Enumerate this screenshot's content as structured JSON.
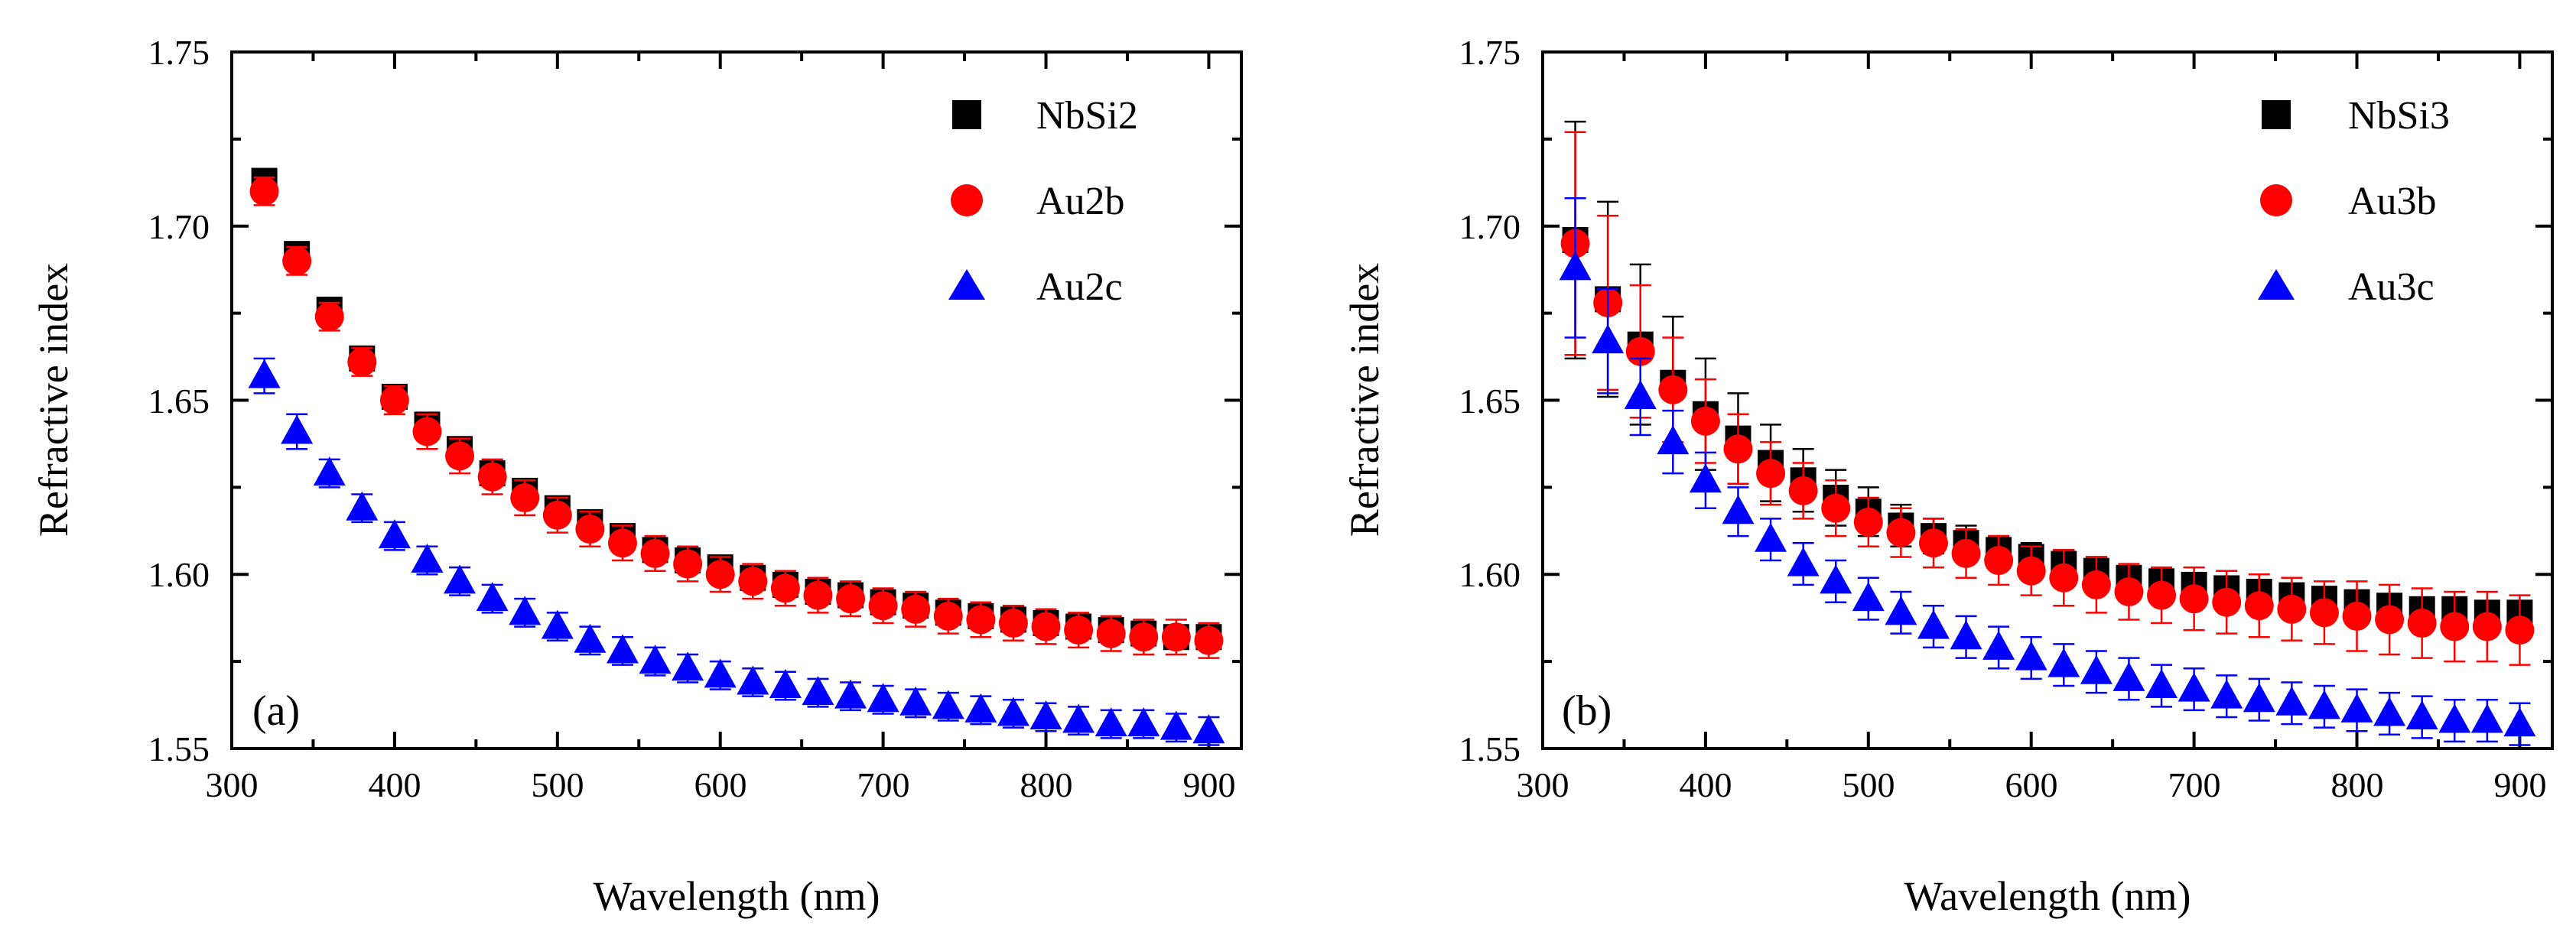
{
  "chart_data": [
    {
      "type": "scatter",
      "panel_label": "(a)",
      "xlabel": "Wavelength (nm)",
      "ylabel": "Refractive index",
      "xlim": [
        300,
        920
      ],
      "ylim": [
        1.55,
        1.75
      ],
      "xticks": [
        300,
        400,
        500,
        600,
        700,
        800,
        900
      ],
      "xtick_labels": [
        "300",
        "400",
        "500",
        "600",
        "700",
        "800",
        "900"
      ],
      "yticks": [
        1.55,
        1.6,
        1.65,
        1.7,
        1.75
      ],
      "ytick_labels": [
        "1.55",
        "1.60",
        "1.65",
        "1.70",
        "1.75"
      ],
      "legend_position": "top-right",
      "x": [
        320,
        340,
        360,
        380,
        400,
        420,
        440,
        460,
        480,
        500,
        520,
        540,
        560,
        580,
        600,
        620,
        640,
        660,
        680,
        700,
        720,
        740,
        760,
        780,
        800,
        820,
        840,
        860,
        880,
        900
      ],
      "series": [
        {
          "name": "NbSi2",
          "marker": "square",
          "color": "#000000",
          "values": [
            1.713,
            1.692,
            1.676,
            1.662,
            1.651,
            1.643,
            1.636,
            1.629,
            1.624,
            1.619,
            1.615,
            1.611,
            1.607,
            1.604,
            1.602,
            1.599,
            1.597,
            1.595,
            1.594,
            1.592,
            1.591,
            1.589,
            1.588,
            1.587,
            1.586,
            1.585,
            1.584,
            1.583,
            1.582,
            1.582
          ],
          "errors": [
            0.003,
            0.003,
            0.003,
            0.003,
            0.003,
            0.003,
            0.003,
            0.003,
            0.003,
            0.003,
            0.003,
            0.003,
            0.003,
            0.003,
            0.003,
            0.003,
            0.003,
            0.003,
            0.003,
            0.003,
            0.003,
            0.003,
            0.003,
            0.003,
            0.003,
            0.003,
            0.003,
            0.003,
            0.003,
            0.003
          ]
        },
        {
          "name": "Au2b",
          "marker": "circle",
          "color": "#ff0000",
          "values": [
            1.71,
            1.69,
            1.674,
            1.661,
            1.65,
            1.641,
            1.634,
            1.628,
            1.622,
            1.617,
            1.613,
            1.609,
            1.606,
            1.603,
            1.6,
            1.598,
            1.596,
            1.594,
            1.593,
            1.591,
            1.59,
            1.588,
            1.587,
            1.586,
            1.585,
            1.584,
            1.583,
            1.582,
            1.582,
            1.581
          ],
          "errors": [
            0.004,
            0.004,
            0.004,
            0.004,
            0.004,
            0.005,
            0.005,
            0.005,
            0.005,
            0.005,
            0.005,
            0.005,
            0.005,
            0.005,
            0.005,
            0.005,
            0.005,
            0.005,
            0.005,
            0.005,
            0.005,
            0.005,
            0.005,
            0.005,
            0.005,
            0.005,
            0.005,
            0.005,
            0.005,
            0.005
          ]
        },
        {
          "name": "Au2c",
          "marker": "triangle",
          "color": "#0000ff",
          "values": [
            1.657,
            1.641,
            1.629,
            1.619,
            1.611,
            1.604,
            1.598,
            1.593,
            1.589,
            1.585,
            1.581,
            1.578,
            1.575,
            1.573,
            1.571,
            1.569,
            1.568,
            1.566,
            1.565,
            1.564,
            1.563,
            1.562,
            1.561,
            1.56,
            1.559,
            1.558,
            1.557,
            1.557,
            1.556,
            1.555
          ],
          "errors": [
            0.005,
            0.005,
            0.004,
            0.004,
            0.004,
            0.004,
            0.004,
            0.004,
            0.004,
            0.004,
            0.004,
            0.004,
            0.004,
            0.004,
            0.004,
            0.004,
            0.004,
            0.004,
            0.004,
            0.004,
            0.004,
            0.004,
            0.004,
            0.004,
            0.004,
            0.004,
            0.004,
            0.004,
            0.004,
            0.004
          ]
        }
      ]
    },
    {
      "type": "scatter",
      "panel_label": "(b)",
      "xlabel": "Wavelength (nm)",
      "ylabel": "Refractive index",
      "xlim": [
        300,
        920
      ],
      "ylim": [
        1.55,
        1.75
      ],
      "xticks": [
        300,
        400,
        500,
        600,
        700,
        800,
        900
      ],
      "xtick_labels": [
        "300",
        "400",
        "500",
        "600",
        "700",
        "800",
        "900"
      ],
      "yticks": [
        1.55,
        1.6,
        1.65,
        1.7,
        1.75
      ],
      "ytick_labels": [
        "1.55",
        "1.60",
        "1.65",
        "1.70",
        "1.75"
      ],
      "legend_position": "top-right",
      "x": [
        320,
        340,
        360,
        380,
        400,
        420,
        440,
        460,
        480,
        500,
        520,
        540,
        560,
        580,
        600,
        620,
        640,
        660,
        680,
        700,
        720,
        740,
        760,
        780,
        800,
        820,
        840,
        860,
        880,
        900
      ],
      "series": [
        {
          "name": "NbSi3",
          "marker": "square",
          "color": "#000000",
          "values": [
            1.696,
            1.679,
            1.666,
            1.655,
            1.646,
            1.639,
            1.632,
            1.627,
            1.622,
            1.618,
            1.614,
            1.611,
            1.609,
            1.607,
            1.605,
            1.603,
            1.601,
            1.599,
            1.598,
            1.597,
            1.596,
            1.595,
            1.594,
            1.593,
            1.592,
            1.591,
            1.59,
            1.59,
            1.589,
            1.589
          ],
          "errors": [
            0.034,
            0.028,
            0.023,
            0.019,
            0.016,
            0.013,
            0.011,
            0.009,
            0.008,
            0.007,
            0.006,
            0.005,
            0.005,
            0.004,
            0.004,
            0.004,
            0.004,
            0.003,
            0.003,
            0.003,
            0.003,
            0.003,
            0.003,
            0.003,
            0.003,
            0.003,
            0.003,
            0.003,
            0.003,
            0.003
          ]
        },
        {
          "name": "Au3b",
          "marker": "circle",
          "color": "#ff0000",
          "values": [
            1.695,
            1.678,
            1.664,
            1.653,
            1.644,
            1.636,
            1.629,
            1.624,
            1.619,
            1.615,
            1.612,
            1.609,
            1.606,
            1.604,
            1.601,
            1.599,
            1.597,
            1.595,
            1.594,
            1.593,
            1.592,
            1.591,
            1.59,
            1.589,
            1.588,
            1.587,
            1.586,
            1.585,
            1.585,
            1.584
          ],
          "errors": [
            0.032,
            0.025,
            0.019,
            0.015,
            0.012,
            0.01,
            0.009,
            0.008,
            0.008,
            0.007,
            0.007,
            0.007,
            0.007,
            0.007,
            0.007,
            0.008,
            0.008,
            0.008,
            0.008,
            0.009,
            0.009,
            0.009,
            0.009,
            0.009,
            0.01,
            0.01,
            0.01,
            0.01,
            0.01,
            0.01
          ]
        },
        {
          "name": "Au3c",
          "marker": "triangle",
          "color": "#0000ff",
          "values": [
            1.688,
            1.667,
            1.651,
            1.638,
            1.627,
            1.618,
            1.61,
            1.603,
            1.598,
            1.593,
            1.589,
            1.585,
            1.582,
            1.579,
            1.576,
            1.574,
            1.572,
            1.57,
            1.568,
            1.567,
            1.565,
            1.564,
            1.563,
            1.562,
            1.561,
            1.56,
            1.559,
            1.558,
            1.558,
            1.557
          ],
          "errors": [
            0.02,
            0.015,
            0.011,
            0.009,
            0.008,
            0.007,
            0.006,
            0.006,
            0.006,
            0.006,
            0.006,
            0.006,
            0.006,
            0.006,
            0.006,
            0.006,
            0.006,
            0.006,
            0.006,
            0.006,
            0.006,
            0.006,
            0.006,
            0.006,
            0.006,
            0.006,
            0.006,
            0.006,
            0.006,
            0.006
          ]
        }
      ]
    }
  ]
}
